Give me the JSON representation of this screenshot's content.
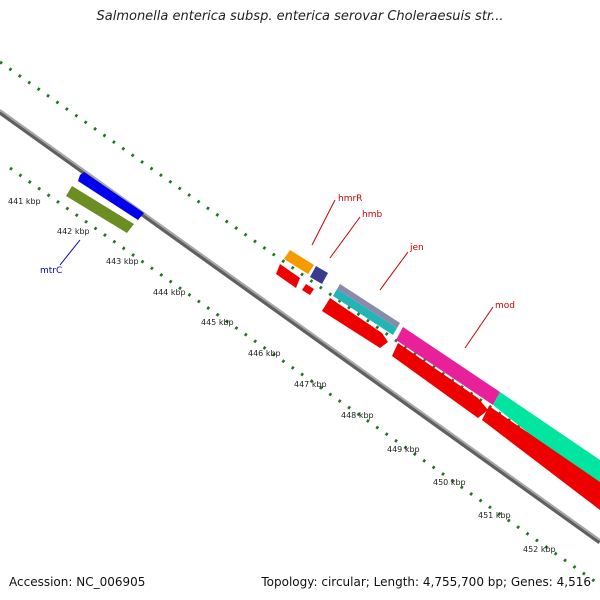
{
  "title": "Salmonella enterica subsp. enterica serovar Choleraesuis str...",
  "footer": {
    "accession": "Accession: NC_006905",
    "summary": "Topology: circular; Length: 4,755,700 bp; Genes: 4,516"
  },
  "colors": {
    "backbone": "#8c8c8c",
    "dots": "#1a7a1a",
    "red": "#ee0000",
    "blue": "#0000ee",
    "olive": "#6b8e23",
    "orange": "#f59b00",
    "navy": "#3a3a8f",
    "slate": "#8a8aaa",
    "teal": "#22b5b5",
    "magenta": "#e8209a",
    "spring": "#00e6a0",
    "label_red": "#cc0000",
    "label_blue": "#0000cc"
  },
  "scale_labels": [
    "441 kbp",
    "442 kbp",
    "443 kbp",
    "444 kbp",
    "445 kbp",
    "446 kbp",
    "447 kbp",
    "448 kbp",
    "449 kbp",
    "450 kbp",
    "451 kbp",
    "452 kbp"
  ],
  "gene_labels": {
    "mtrC": "mtrC",
    "hmrR": "hmrR",
    "hmb": "hmb",
    "jen": "jen",
    "mod": "mod"
  }
}
